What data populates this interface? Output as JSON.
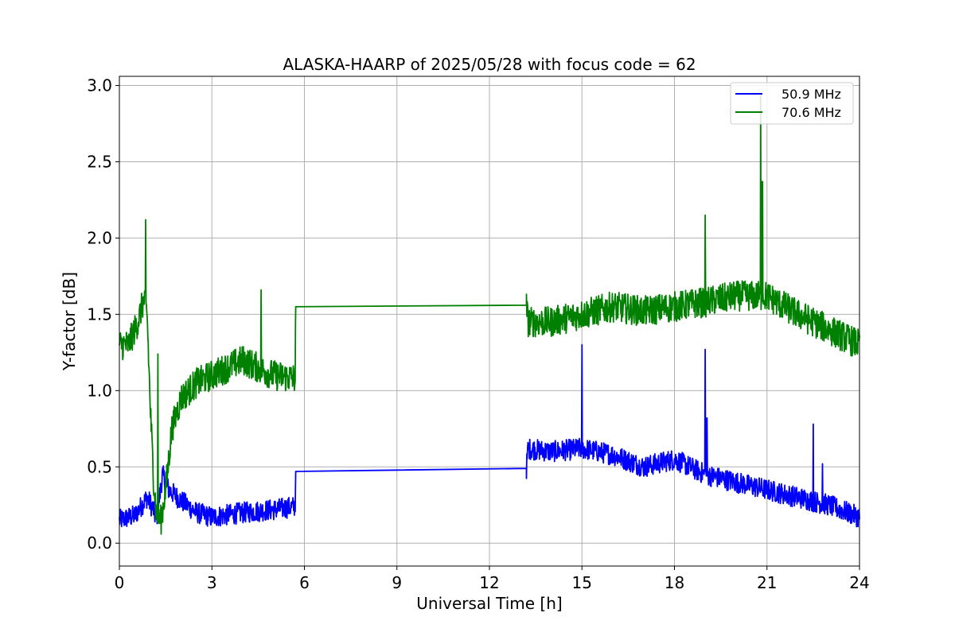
{
  "chart_data": {
    "type": "line",
    "title": "ALASKA-HAARP of 2025/05/28 with focus code = 62",
    "xlabel": "Universal Time [h]",
    "ylabel": "Y-factor [dB]",
    "xlim": [
      0,
      24
    ],
    "ylim": [
      -0.15,
      3.06
    ],
    "xticks": [
      0,
      3,
      6,
      9,
      12,
      15,
      18,
      21,
      24
    ],
    "xtick_labels": [
      "0",
      "3",
      "6",
      "9",
      "12",
      "15",
      "18",
      "21",
      "24"
    ],
    "yticks": [
      0.0,
      0.5,
      1.0,
      1.5,
      2.0,
      2.5,
      3.0
    ],
    "ytick_labels": [
      "0.0",
      "0.5",
      "1.0",
      "1.5",
      "2.0",
      "2.5",
      "3.0"
    ],
    "grid": true,
    "legend_position": "top-right",
    "series": [
      {
        "name": "50.9 MHz",
        "color": "#0000ff",
        "noise_amplitude": 0.07,
        "x": [
          0.0,
          0.5,
          0.9,
          1.1,
          1.2,
          1.4,
          1.6,
          2.0,
          2.5,
          3.0,
          4.0,
          5.0,
          5.7,
          5.72,
          13.2,
          13.25,
          14.0,
          15.0,
          16.0,
          17.0,
          18.0,
          19.0,
          20.0,
          21.0,
          22.0,
          23.0,
          24.0
        ],
        "y": [
          0.15,
          0.18,
          0.3,
          0.22,
          0.15,
          0.45,
          0.35,
          0.28,
          0.2,
          0.17,
          0.2,
          0.22,
          0.24,
          0.47,
          0.49,
          0.62,
          0.6,
          0.62,
          0.58,
          0.5,
          0.55,
          0.45,
          0.4,
          0.35,
          0.3,
          0.25,
          0.17
        ],
        "spikes": [
          {
            "x": 15.0,
            "y": 1.3
          },
          {
            "x": 19.0,
            "y": 1.27
          },
          {
            "x": 19.05,
            "y": 0.82
          },
          {
            "x": 22.5,
            "y": 0.78
          },
          {
            "x": 22.8,
            "y": 0.52
          }
        ]
      },
      {
        "name": "70.6 MHz",
        "color": "#008000",
        "noise_amplitude": 0.1,
        "x": [
          0.0,
          0.3,
          0.6,
          0.8,
          0.9,
          1.0,
          1.1,
          1.2,
          1.35,
          1.5,
          1.7,
          2.0,
          2.5,
          3.0,
          4.0,
          5.0,
          5.7,
          5.72,
          13.2,
          13.25,
          14.0,
          15.0,
          16.0,
          17.0,
          18.0,
          19.0,
          20.0,
          21.0,
          22.0,
          23.0,
          24.0
        ],
        "y": [
          1.3,
          1.3,
          1.45,
          1.6,
          1.5,
          0.9,
          0.45,
          0.2,
          0.15,
          0.35,
          0.75,
          0.95,
          1.05,
          1.1,
          1.2,
          1.1,
          1.08,
          1.55,
          1.56,
          1.45,
          1.45,
          1.5,
          1.55,
          1.52,
          1.55,
          1.58,
          1.62,
          1.62,
          1.5,
          1.4,
          1.3
        ],
        "spikes": [
          {
            "x": 0.85,
            "y": 2.12
          },
          {
            "x": 1.25,
            "y": 1.24
          },
          {
            "x": 4.6,
            "y": 1.66
          },
          {
            "x": 19.0,
            "y": 2.15
          },
          {
            "x": 20.8,
            "y": 2.95
          },
          {
            "x": 20.85,
            "y": 2.37
          }
        ]
      }
    ]
  }
}
